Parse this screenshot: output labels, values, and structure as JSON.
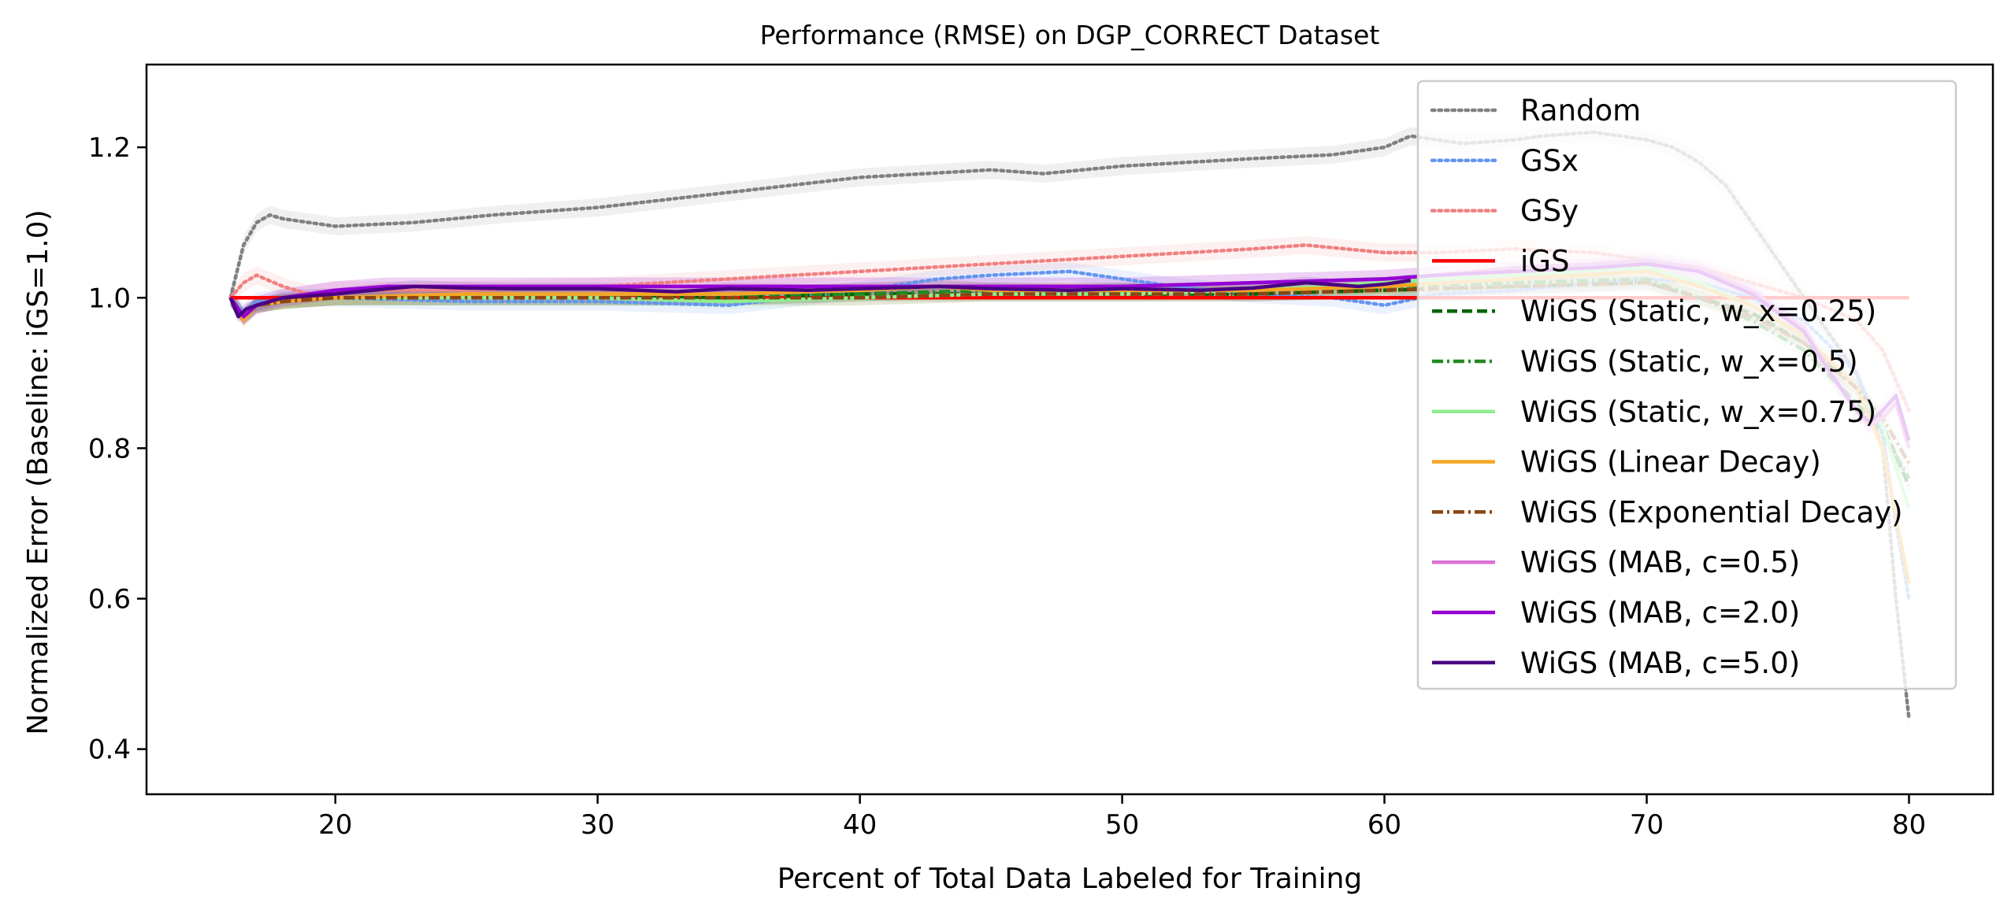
{
  "chart_data": {
    "type": "line",
    "title": "Performance (RMSE) on DGP_CORRECT Dataset",
    "xlabel": "Percent of Total Data Labeled for Training",
    "ylabel": "Normalized Error (Baseline: iGS=1.0)",
    "xlim": [
      12.8,
      83.2
    ],
    "ylim": [
      0.34,
      1.31
    ],
    "xticks": [
      20,
      30,
      40,
      50,
      60,
      70,
      80
    ],
    "yticks": [
      0.4,
      0.6,
      0.8,
      1.0,
      1.2
    ],
    "xtick_labels": [
      "20",
      "30",
      "40",
      "50",
      "60",
      "70",
      "80"
    ],
    "ytick_labels": [
      "0.4",
      "0.6",
      "0.8",
      "1.0",
      "1.2"
    ],
    "grid": false,
    "legend_position": "upper right",
    "series": [
      {
        "name": "Random",
        "color": "#808080",
        "dash": "dotted",
        "x": [
          16,
          16.5,
          17,
          17.5,
          18,
          20,
          23,
          26,
          30,
          35,
          40,
          45,
          47,
          50,
          55,
          58,
          60,
          61,
          62,
          63,
          65,
          66,
          68,
          70,
          71,
          72,
          73,
          74,
          75,
          76,
          77,
          78,
          79,
          79.5,
          80
        ],
        "y": [
          1.0,
          1.07,
          1.1,
          1.11,
          1.105,
          1.095,
          1.1,
          1.11,
          1.12,
          1.14,
          1.16,
          1.17,
          1.165,
          1.175,
          1.185,
          1.19,
          1.2,
          1.215,
          1.21,
          1.205,
          1.21,
          1.215,
          1.22,
          1.21,
          1.2,
          1.18,
          1.15,
          1.1,
          1.05,
          1.0,
          0.95,
          0.9,
          0.8,
          0.6,
          0.44
        ],
        "band": 0.012
      },
      {
        "name": "GSx",
        "color": "#6495ed",
        "dash": "dotted",
        "x": [
          16,
          16.5,
          17,
          18,
          20,
          25,
          30,
          35,
          40,
          43,
          45,
          48,
          50,
          52,
          55,
          58,
          60,
          62,
          65,
          68,
          70,
          72,
          74,
          76,
          78,
          79,
          79.5,
          80
        ],
        "y": [
          1.0,
          0.98,
          0.995,
          1.0,
          1.0,
          0.995,
          0.995,
          0.99,
          1.01,
          1.025,
          1.03,
          1.035,
          1.025,
          1.015,
          1.005,
          1.0,
          0.99,
          1.005,
          1.01,
          1.02,
          1.025,
          1.02,
          1.0,
          0.97,
          0.9,
          0.82,
          0.7,
          0.6
        ],
        "band": 0.012
      },
      {
        "name": "GSy",
        "color": "#f08080",
        "dash": "dotted",
        "x": [
          16,
          16.5,
          17,
          18,
          19,
          20,
          25,
          30,
          35,
          40,
          45,
          50,
          55,
          57,
          60,
          62,
          65,
          68,
          70,
          72,
          74,
          76,
          78,
          79,
          80
        ],
        "y": [
          1.0,
          1.02,
          1.03,
          1.015,
          1.005,
          1.01,
          1.01,
          1.015,
          1.025,
          1.035,
          1.045,
          1.055,
          1.065,
          1.07,
          1.06,
          1.06,
          1.065,
          1.06,
          1.05,
          1.04,
          1.02,
          1.0,
          0.97,
          0.93,
          0.85
        ],
        "band": 0.012
      },
      {
        "name": "iGS",
        "color": "#ff0000",
        "dash": "solid",
        "x": [
          16,
          80
        ],
        "y": [
          1.0,
          1.0
        ],
        "band": 0
      },
      {
        "name": "WiGS (Static, w_x=0.25)",
        "color": "#006400",
        "dash": "dashed",
        "x": [
          16,
          16.5,
          17,
          18,
          20,
          25,
          30,
          35,
          40,
          45,
          50,
          55,
          60,
          65,
          70,
          72,
          74,
          76,
          78,
          79,
          80
        ],
        "y": [
          1.0,
          0.975,
          0.99,
          0.995,
          1.0,
          1.0,
          1.0,
          1.0,
          1.005,
          1.005,
          1.005,
          1.005,
          1.01,
          1.015,
          1.02,
          1.0,
          0.98,
          0.94,
          0.88,
          0.83,
          0.75
        ],
        "band": 0.01
      },
      {
        "name": "WiGS (Static, w_x=0.5)",
        "color": "#228b22",
        "dash": "dashdot",
        "x": [
          16,
          16.5,
          17,
          18,
          20,
          25,
          30,
          35,
          40,
          45,
          50,
          55,
          60,
          65,
          70,
          72,
          74,
          76,
          78,
          79,
          80
        ],
        "y": [
          1.0,
          0.975,
          0.99,
          0.995,
          1.0,
          1.0,
          1.0,
          1.0,
          1.005,
          1.01,
          1.01,
          1.01,
          1.015,
          1.02,
          1.025,
          1.0,
          0.97,
          0.93,
          0.86,
          0.82,
          0.76
        ],
        "band": 0.01
      },
      {
        "name": "WiGS (Static, w_x=0.75)",
        "color": "#90ee90",
        "dash": "solid",
        "x": [
          16,
          16.5,
          17,
          18,
          20,
          25,
          30,
          35,
          40,
          45,
          50,
          55,
          60,
          65,
          70,
          72,
          74,
          76,
          78,
          79,
          80
        ],
        "y": [
          1.0,
          0.975,
          0.99,
          0.995,
          1.0,
          1.0,
          1.0,
          0.995,
          1.0,
          1.005,
          1.005,
          1.01,
          1.02,
          1.03,
          1.04,
          1.02,
          0.99,
          0.95,
          0.88,
          0.83,
          0.72
        ],
        "band": 0.01
      },
      {
        "name": "WiGS (Linear Decay)",
        "color": "#f5a623",
        "dash": "solid",
        "x": [
          16,
          16.5,
          17,
          18,
          20,
          25,
          30,
          35,
          40,
          43,
          45,
          50,
          55,
          60,
          65,
          70,
          72,
          74,
          76,
          78,
          79,
          80
        ],
        "y": [
          1.0,
          0.97,
          0.99,
          0.995,
          1.0,
          1.005,
          1.005,
          1.005,
          1.01,
          1.015,
          1.01,
          1.01,
          1.01,
          1.015,
          1.025,
          1.035,
          1.015,
          0.99,
          0.95,
          0.88,
          0.8,
          0.62
        ],
        "band": 0.01
      },
      {
        "name": "WiGS (Exponential Decay)",
        "color": "#8b4513",
        "dash": "dashdot",
        "x": [
          16,
          16.5,
          17,
          18,
          20,
          25,
          30,
          35,
          40,
          45,
          50,
          55,
          60,
          65,
          70,
          72,
          74,
          76,
          78,
          79,
          80
        ],
        "y": [
          1.0,
          0.975,
          0.99,
          0.995,
          1.0,
          1.0,
          1.0,
          1.0,
          1.0,
          1.005,
          1.005,
          1.005,
          1.01,
          1.015,
          1.02,
          1.0,
          0.975,
          0.94,
          0.88,
          0.84,
          0.78
        ],
        "band": 0.01
      },
      {
        "name": "WiGS (MAB, c=0.5)",
        "color": "#da70d6",
        "dash": "solid",
        "x": [
          16,
          16.5,
          17,
          18,
          20,
          22,
          25,
          30,
          35,
          40,
          45,
          50,
          55,
          60,
          62,
          65,
          68,
          70,
          72,
          74,
          76,
          77,
          78,
          78.5,
          79,
          79.5,
          80
        ],
        "y": [
          1.0,
          0.975,
          0.99,
          1.0,
          1.01,
          1.015,
          1.015,
          1.015,
          1.015,
          1.015,
          1.015,
          1.015,
          1.02,
          1.025,
          1.03,
          1.04,
          1.045,
          1.05,
          1.04,
          1.01,
          0.96,
          0.9,
          0.85,
          0.83,
          0.84,
          0.86,
          0.8
        ],
        "band": 0.012
      },
      {
        "name": "WiGS (MAB, c=2.0)",
        "color": "#9400d3",
        "dash": "solid",
        "x": [
          16,
          16.5,
          17,
          18,
          20,
          22,
          25,
          30,
          35,
          40,
          45,
          50,
          55,
          60,
          62,
          65,
          68,
          70,
          72,
          74,
          76,
          77,
          78,
          78.5,
          79,
          79.5,
          80
        ],
        "y": [
          1.0,
          0.975,
          0.99,
          1.0,
          1.01,
          1.015,
          1.015,
          1.015,
          1.015,
          1.015,
          1.015,
          1.015,
          1.02,
          1.025,
          1.03,
          1.035,
          1.04,
          1.045,
          1.035,
          1.005,
          0.955,
          0.9,
          0.85,
          0.835,
          0.85,
          0.87,
          0.81
        ],
        "band": 0.012
      },
      {
        "name": "WiGS (MAB, c=5.0)",
        "color": "#4b0082",
        "dash": "solid",
        "x": [
          16,
          16.3,
          16.6,
          17,
          18,
          20,
          22,
          23,
          25,
          27,
          30,
          33,
          35,
          38,
          40,
          43,
          45,
          48,
          50,
          53,
          55,
          57,
          59,
          60,
          61
        ],
        "y": [
          1.0,
          0.975,
          0.985,
          0.99,
          1.0,
          1.005,
          1.012,
          1.015,
          1.013,
          1.012,
          1.012,
          1.008,
          1.012,
          1.01,
          1.012,
          1.015,
          1.012,
          1.01,
          1.012,
          1.01,
          1.013,
          1.02,
          1.015,
          1.018,
          1.023
        ],
        "band": 0.008
      }
    ]
  }
}
